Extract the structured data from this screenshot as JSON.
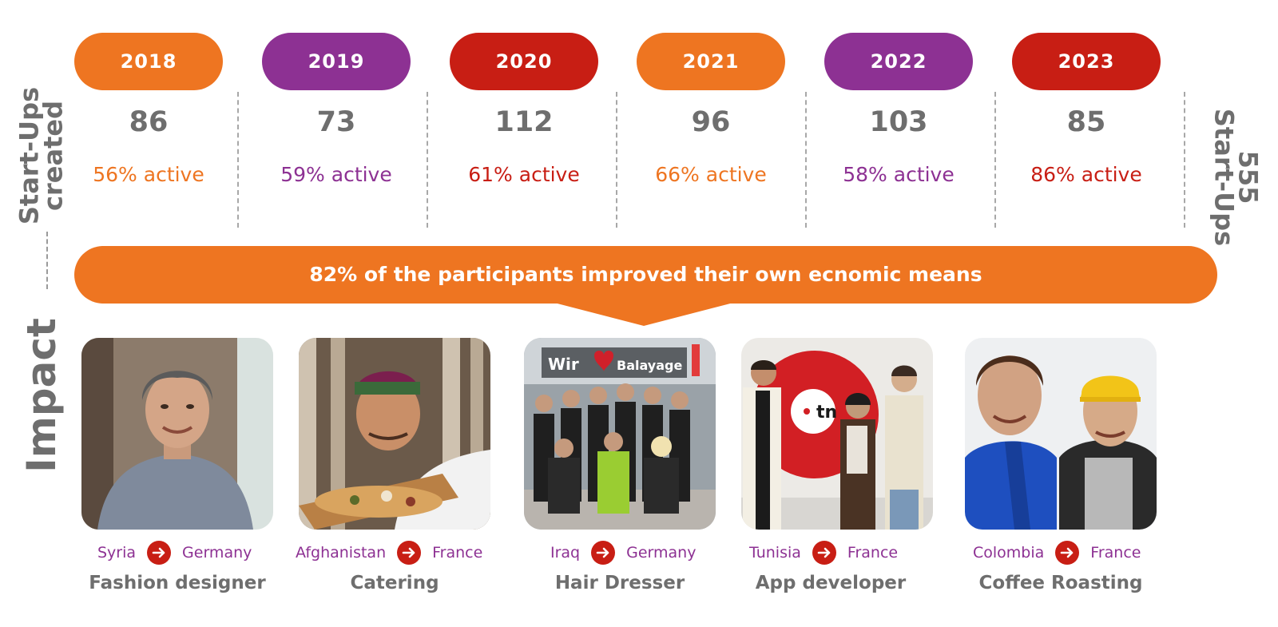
{
  "labels": {
    "startups_line1": "Start-Ups",
    "startups_line2": "created",
    "impact": "Impact",
    "total_line1": "555",
    "total_line2": "Start-Ups"
  },
  "colors": {
    "orange": "#ee7521",
    "purple": "#8d3193",
    "red": "#c81e14",
    "gray": "#6e6e6e"
  },
  "years": [
    {
      "year": "2018",
      "count": "86",
      "active": "56% active",
      "color": "#ee7521"
    },
    {
      "year": "2019",
      "count": "73",
      "active": "59% active",
      "color": "#8d3193"
    },
    {
      "year": "2020",
      "count": "112",
      "active": "61% active",
      "color": "#c81e14"
    },
    {
      "year": "2021",
      "count": "96",
      "active": "66% active",
      "color": "#ee7521"
    },
    {
      "year": "2022",
      "count": "103",
      "active": "58% active",
      "color": "#8d3193"
    },
    {
      "year": "2023",
      "count": "85",
      "active": "86% active",
      "color": "#c81e14"
    }
  ],
  "impact_statement": "82% of the participants improved their own ecnomic means",
  "people": [
    {
      "from": "Syria",
      "to": "Germany",
      "role": "Fashion designer",
      "icon": "arrow-right-icon"
    },
    {
      "from": "Afghanistan",
      "to": "France",
      "role": "Catering",
      "icon": "arrow-right-icon"
    },
    {
      "from": "Iraq",
      "to": "Germany",
      "role": "Hair Dresser",
      "icon": "arrow-right-icon",
      "photo_sign_left": "Wir",
      "photo_sign_right": "Balayage"
    },
    {
      "from": "Tunisia",
      "to": "France",
      "role": "App developer",
      "icon": "arrow-right-icon",
      "photo_logo": "tn"
    },
    {
      "from": "Colombia",
      "to": "France",
      "role": "Coffee Roasting",
      "icon": "arrow-right-icon"
    }
  ]
}
